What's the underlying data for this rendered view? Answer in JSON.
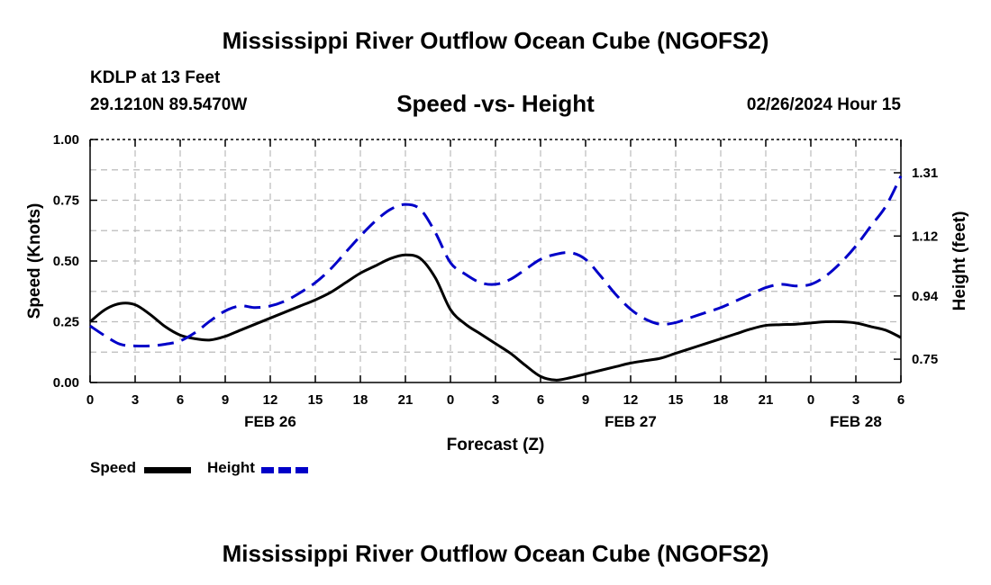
{
  "page": {
    "title": "Mississippi River Outflow Ocean Cube (NGOFS2)",
    "footer_title": "Mississippi River Outflow Ocean Cube (NGOFS2)"
  },
  "station": {
    "name": "KDLP at 13 Feet",
    "coords": "29.1210N  89.5470W"
  },
  "timestamp": "02/26/2024 Hour 15",
  "legend": {
    "speed_label": "Speed",
    "height_label": "Height"
  },
  "colors": {
    "speed": "#000000",
    "height": "#0000c8",
    "grid": "#bbbbbb"
  },
  "chart_data": {
    "type": "line",
    "title": "Speed -vs- Height",
    "xlabel": "Forecast (Z)",
    "ylabel": "Speed (Knots)",
    "y2label": "Height (feet)",
    "xlim": [
      0,
      54
    ],
    "ylim": [
      0,
      1.0
    ],
    "y2lim": [
      0.68,
      1.41
    ],
    "x_ticks": [
      0,
      3,
      6,
      9,
      12,
      15,
      18,
      21,
      24,
      27,
      30,
      33,
      36,
      39,
      42,
      45,
      48,
      51,
      54
    ],
    "x_tick_labels": [
      "0",
      "3",
      "6",
      "9",
      "12",
      "15",
      "18",
      "21",
      "0",
      "3",
      "6",
      "9",
      "12",
      "15",
      "18",
      "21",
      "0",
      "3",
      "6"
    ],
    "date_labels": [
      {
        "x": 12,
        "label": "FEB 26"
      },
      {
        "x": 36,
        "label": "FEB 27"
      },
      {
        "x": 51,
        "label": "FEB 28"
      }
    ],
    "y_ticks": [
      0.0,
      0.25,
      0.5,
      0.75,
      1.0
    ],
    "y_tick_labels": [
      "0.00",
      "0.25",
      "0.50",
      "0.75",
      "1.00"
    ],
    "y2_ticks": [
      0.75,
      0.94,
      1.12,
      1.31
    ],
    "y2_tick_labels": [
      "0.75",
      "0.94",
      "1.12",
      "1.31"
    ],
    "series": [
      {
        "name": "Speed",
        "axis": "left",
        "x": [
          0,
          1,
          2,
          3,
          4,
          5,
          6,
          7,
          8,
          9,
          10,
          11,
          12,
          13,
          14,
          15,
          16,
          17,
          18,
          19,
          20,
          21,
          22,
          23,
          24,
          25,
          26,
          27,
          28,
          29,
          30,
          31,
          32,
          33,
          34,
          35,
          36,
          37,
          38,
          39,
          40,
          41,
          42,
          43,
          44,
          45,
          46,
          47,
          48,
          49,
          50,
          51,
          52,
          53,
          54
        ],
        "values": [
          0.25,
          0.3,
          0.325,
          0.32,
          0.28,
          0.23,
          0.195,
          0.18,
          0.175,
          0.19,
          0.215,
          0.24,
          0.265,
          0.29,
          0.315,
          0.34,
          0.37,
          0.41,
          0.45,
          0.48,
          0.51,
          0.525,
          0.51,
          0.43,
          0.3,
          0.24,
          0.2,
          0.16,
          0.12,
          0.07,
          0.025,
          0.01,
          0.02,
          0.035,
          0.05,
          0.065,
          0.08,
          0.09,
          0.1,
          0.12,
          0.14,
          0.16,
          0.18,
          0.2,
          0.22,
          0.235,
          0.238,
          0.24,
          0.245,
          0.25,
          0.25,
          0.245,
          0.23,
          0.215,
          0.185
        ]
      },
      {
        "name": "Height",
        "axis": "right",
        "x": [
          0,
          1,
          2,
          3,
          4,
          5,
          6,
          7,
          8,
          9,
          10,
          11,
          12,
          13,
          14,
          15,
          16,
          17,
          18,
          19,
          20,
          21,
          22,
          23,
          24,
          25,
          26,
          27,
          28,
          29,
          30,
          31,
          32,
          33,
          34,
          35,
          36,
          37,
          38,
          39,
          40,
          41,
          42,
          43,
          44,
          45,
          46,
          47,
          48,
          49,
          50,
          51,
          52,
          53,
          54
        ],
        "values": [
          0.85,
          0.82,
          0.795,
          0.79,
          0.79,
          0.795,
          0.805,
          0.83,
          0.865,
          0.895,
          0.91,
          0.905,
          0.91,
          0.925,
          0.95,
          0.98,
          1.02,
          1.07,
          1.12,
          1.165,
          1.2,
          1.215,
          1.2,
          1.13,
          1.04,
          1.005,
          0.98,
          0.975,
          0.99,
          1.02,
          1.05,
          1.065,
          1.07,
          1.05,
          1.0,
          0.945,
          0.9,
          0.87,
          0.855,
          0.86,
          0.875,
          0.89,
          0.905,
          0.925,
          0.945,
          0.965,
          0.975,
          0.97,
          0.975,
          1.0,
          1.04,
          1.09,
          1.15,
          1.21,
          1.3
        ]
      }
    ]
  }
}
